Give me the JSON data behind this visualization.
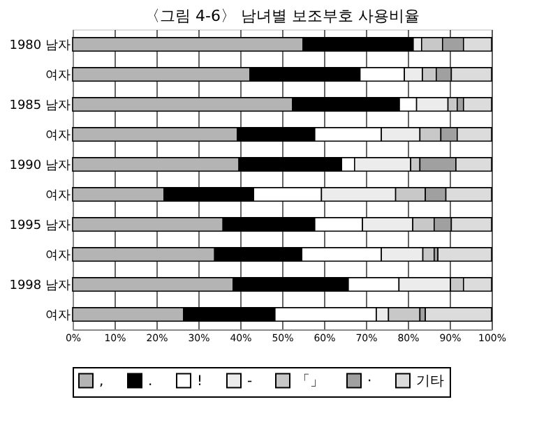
{
  "chart_data": {
    "type": "bar",
    "orientation": "horizontal",
    "stacked": true,
    "title": "〈그림 4-6〉 남녀별 보조부호 사용비율",
    "categories": [
      "1980 남자",
      "여자",
      "1985 남자",
      "여자",
      "1990 남자",
      "여자",
      "1995 남자",
      "여자",
      "1998 남자",
      "여자"
    ],
    "series": [
      {
        "name": ",",
        "color": "#b4b4b4",
        "values": [
          55.0,
          42.3,
          52.5,
          39.3,
          39.7,
          21.8,
          35.9,
          33.9,
          38.3,
          26.5
        ]
      },
      {
        "name": ".",
        "color": "#000000",
        "values": [
          26.3,
          26.3,
          25.5,
          18.5,
          24.5,
          21.4,
          21.9,
          20.8,
          27.5,
          21.8
        ]
      },
      {
        "name": "!",
        "color": "#ffffff",
        "values": [
          0,
          10.6,
          4.1,
          15.9,
          3.1,
          16.2,
          11.4,
          19.0,
          12.1,
          24.2
        ]
      },
      {
        "name": "-",
        "color": "#ececec",
        "values": [
          2.0,
          4.3,
          7.5,
          9.2,
          13.4,
          17.7,
          12.0,
          9.9,
          12.3,
          2.9
        ]
      },
      {
        "name": "「」",
        "color": "#c8c8c8",
        "values": [
          5.0,
          3.3,
          2.2,
          5.0,
          2.2,
          7.1,
          5.1,
          2.7,
          3.1,
          7.5
        ]
      },
      {
        "name": "·",
        "color": "#a0a0a0",
        "values": [
          5.0,
          3.6,
          1.5,
          3.9,
          8.6,
          4.9,
          4.1,
          0.9,
          0,
          1.3
        ]
      },
      {
        "name": "기타",
        "color": "#dcdcdc",
        "values": [
          6.7,
          9.6,
          6.7,
          8.2,
          8.5,
          10.9,
          9.6,
          12.8,
          6.7,
          15.8
        ]
      }
    ],
    "xlim": [
      0,
      100
    ],
    "xticks": [
      {
        "value": 0,
        "label": "0%"
      },
      {
        "value": 10,
        "label": "10%"
      },
      {
        "value": 20,
        "label": "20%"
      },
      {
        "value": 30,
        "label": "30%"
      },
      {
        "value": 40,
        "label": "40%"
      },
      {
        "value": 50,
        "label": "50%"
      },
      {
        "value": 60,
        "label": "60%"
      },
      {
        "value": 70,
        "label": "70%"
      },
      {
        "value": 80,
        "label": "80%"
      },
      {
        "value": 90,
        "label": "90%"
      },
      {
        "value": 100,
        "label": "100%"
      }
    ],
    "grid": "x",
    "legend": "bottom"
  }
}
